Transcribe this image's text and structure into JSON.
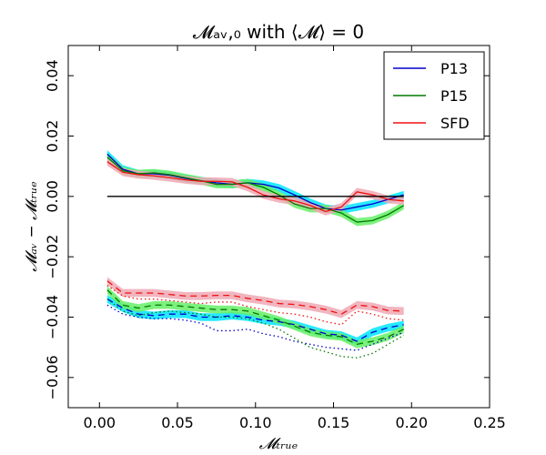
{
  "chart_data": {
    "type": "line",
    "title": "𝓜ₐᵥ,₀ with ⟨𝓜⟩ = 0",
    "xlabel": "𝓜ₜᵣᵤₑ",
    "ylabel": "𝓜ₐᵥ − 𝓜ₜᵣᵤₑ",
    "xlim": [
      -0.02,
      0.25
    ],
    "ylim": [
      -0.07,
      0.05
    ],
    "xticks": [
      "0.00",
      "0.05",
      "0.10",
      "0.15",
      "0.20",
      "0.25"
    ],
    "yticks": [
      "−0.06",
      "−0.04",
      "−0.02",
      "0.00",
      "0.02",
      "0.04"
    ],
    "legend": {
      "position": "top-right",
      "entries": [
        {
          "name": "P13",
          "color": "#0000cc"
        },
        {
          "name": "P15",
          "color": "#007a00"
        },
        {
          "name": "SFD",
          "color": "#ee1111"
        }
      ]
    },
    "reference_line": {
      "y": 0.0,
      "x": [
        0.005,
        0.195
      ],
      "color": "#000000"
    },
    "x": [
      0.005,
      0.015,
      0.025,
      0.035,
      0.045,
      0.055,
      0.065,
      0.075,
      0.085,
      0.095,
      0.105,
      0.115,
      0.125,
      0.135,
      0.145,
      0.155,
      0.165,
      0.175,
      0.185,
      0.195
    ],
    "series": [
      {
        "name": "P13",
        "color": "#0000cc",
        "band_color": "#00e5ff",
        "solid": [
          0.014,
          0.009,
          0.0075,
          0.0075,
          0.007,
          0.006,
          0.0052,
          0.0045,
          0.004,
          0.0045,
          0.004,
          0.0028,
          0.0005,
          -0.002,
          -0.004,
          -0.0045,
          -0.0035,
          -0.0025,
          -0.001,
          0.0005
        ],
        "dashed": [
          -0.034,
          -0.037,
          -0.039,
          -0.0395,
          -0.039,
          -0.039,
          -0.04,
          -0.04,
          -0.0395,
          -0.04,
          -0.041,
          -0.0415,
          -0.0425,
          -0.044,
          -0.0455,
          -0.046,
          -0.048,
          -0.045,
          -0.0435,
          -0.0425
        ],
        "dotted": [
          -0.036,
          -0.039,
          -0.04,
          -0.0405,
          -0.0405,
          -0.041,
          -0.042,
          -0.0445,
          -0.0445,
          -0.044,
          -0.0455,
          -0.0465,
          -0.048,
          -0.049,
          -0.05,
          -0.0505,
          -0.051,
          -0.049,
          -0.047,
          -0.045
        ]
      },
      {
        "name": "P15",
        "color": "#007a00",
        "band_color": "#66ee66",
        "solid": [
          0.013,
          0.0085,
          0.0075,
          0.0078,
          0.0072,
          0.0062,
          0.0052,
          0.004,
          0.004,
          0.0045,
          0.003,
          0.0005,
          -0.0025,
          -0.004,
          -0.004,
          -0.0055,
          -0.0085,
          -0.008,
          -0.006,
          -0.003
        ],
        "dashed": [
          -0.031,
          -0.036,
          -0.037,
          -0.036,
          -0.036,
          -0.0365,
          -0.037,
          -0.0375,
          -0.0375,
          -0.038,
          -0.0395,
          -0.041,
          -0.043,
          -0.045,
          -0.046,
          -0.0465,
          -0.049,
          -0.048,
          -0.0465,
          -0.044
        ],
        "dotted": [
          -0.034,
          -0.038,
          -0.0395,
          -0.0385,
          -0.038,
          -0.0385,
          -0.039,
          -0.04,
          -0.04,
          -0.0405,
          -0.042,
          -0.044,
          -0.047,
          -0.05,
          -0.0515,
          -0.053,
          -0.0535,
          -0.052,
          -0.049,
          -0.046
        ]
      },
      {
        "name": "SFD",
        "color": "#ee1111",
        "band_color": "#f0a8b4",
        "solid": [
          0.0115,
          0.008,
          0.0072,
          0.0068,
          0.0062,
          0.0055,
          0.005,
          0.005,
          0.0048,
          0.003,
          0.0005,
          -0.0008,
          -0.0015,
          -0.003,
          -0.005,
          -0.0035,
          0.0015,
          0.0005,
          -0.001,
          -0.0015
        ],
        "dashed": [
          -0.028,
          -0.032,
          -0.032,
          -0.032,
          -0.0325,
          -0.033,
          -0.033,
          -0.0328,
          -0.0328,
          -0.0338,
          -0.0345,
          -0.0355,
          -0.0358,
          -0.0365,
          -0.0375,
          -0.039,
          -0.036,
          -0.0365,
          -0.0378,
          -0.038
        ],
        "dotted": [
          -0.0295,
          -0.033,
          -0.034,
          -0.034,
          -0.0345,
          -0.035,
          -0.0355,
          -0.035,
          -0.035,
          -0.0365,
          -0.0375,
          -0.0385,
          -0.039,
          -0.04,
          -0.0415,
          -0.0425,
          -0.038,
          -0.039,
          -0.0405,
          -0.041
        ]
      }
    ]
  }
}
